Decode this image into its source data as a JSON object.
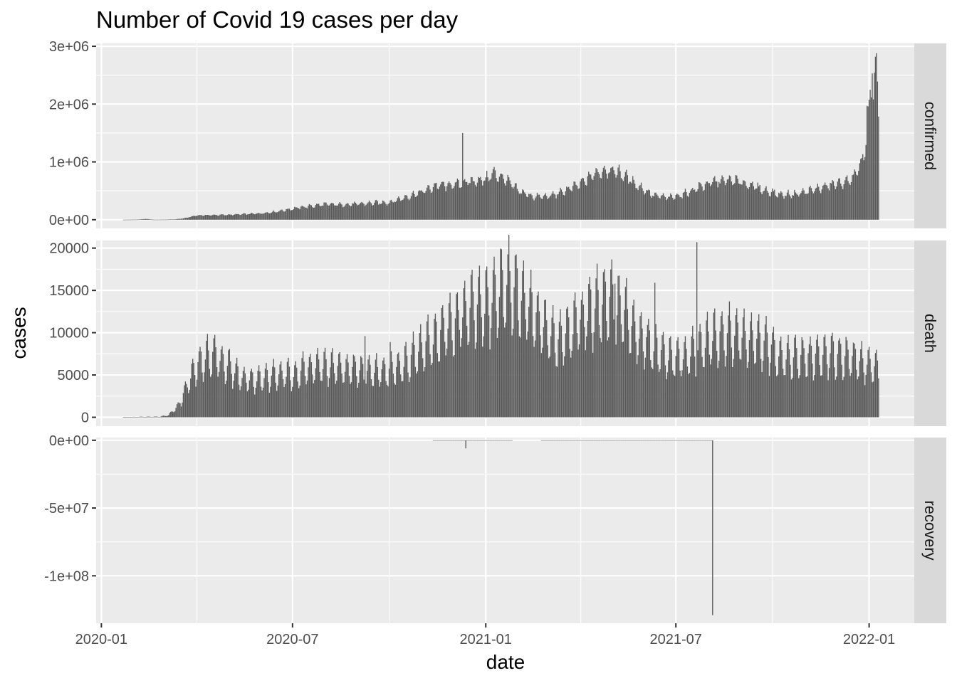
{
  "chart_data": {
    "type": "bar",
    "title": "Number of Covid 19 cases per day",
    "xlabel": "date",
    "ylabel": "cases",
    "x_domain": [
      "2019-12-27",
      "2022-02-13"
    ],
    "x_ticks": [
      "2020-01",
      "2020-07",
      "2021-01",
      "2021-07",
      "2022-01"
    ],
    "x_tick_dates": [
      "2020-01-01",
      "2020-07-01",
      "2021-01-01",
      "2021-07-01",
      "2022-01-01"
    ],
    "grid": true,
    "bar_color": "#595959",
    "panel_background": "#ebebeb",
    "strip_background": "#d9d9d9",
    "grid_color": "#ffffff",
    "panels": [
      {
        "name": "confirmed",
        "ylim": [
          -150000,
          3050000
        ],
        "y_ticks": [
          0,
          1000000,
          2000000,
          3000000
        ],
        "y_tick_labels": [
          "0e+00",
          "1e+06",
          "2e+06",
          "3e+06"
        ],
        "start_date": "2020-01-22",
        "weekly_amplitude": 0.12,
        "anchors": [
          [
            "2020-01-22",
            0
          ],
          [
            "2020-02-05",
            3000
          ],
          [
            "2020-02-12",
            15000
          ],
          [
            "2020-02-20",
            1000
          ],
          [
            "2020-03-01",
            2000
          ],
          [
            "2020-03-10",
            5000
          ],
          [
            "2020-03-20",
            25000
          ],
          [
            "2020-04-01",
            75000
          ],
          [
            "2020-04-15",
            80000
          ],
          [
            "2020-05-01",
            85000
          ],
          [
            "2020-05-15",
            95000
          ],
          [
            "2020-06-01",
            110000
          ],
          [
            "2020-06-15",
            140000
          ],
          [
            "2020-07-01",
            190000
          ],
          [
            "2020-07-15",
            230000
          ],
          [
            "2020-08-01",
            265000
          ],
          [
            "2020-08-15",
            260000
          ],
          [
            "2020-09-01",
            270000
          ],
          [
            "2020-09-15",
            290000
          ],
          [
            "2020-10-01",
            300000
          ],
          [
            "2020-10-15",
            380000
          ],
          [
            "2020-11-01",
            480000
          ],
          [
            "2020-11-15",
            590000
          ],
          [
            "2020-12-01",
            600000
          ],
          [
            "2020-12-15",
            650000
          ],
          [
            "2021-01-01",
            700000
          ],
          [
            "2021-01-08",
            800000
          ],
          [
            "2021-01-20",
            700000
          ],
          [
            "2021-02-01",
            500000
          ],
          [
            "2021-02-15",
            400000
          ],
          [
            "2021-03-01",
            400000
          ],
          [
            "2021-03-15",
            480000
          ],
          [
            "2021-04-01",
            620000
          ],
          [
            "2021-04-15",
            800000
          ],
          [
            "2021-04-28",
            870000
          ],
          [
            "2021-05-10",
            800000
          ],
          [
            "2021-05-25",
            600000
          ],
          [
            "2021-06-10",
            420000
          ],
          [
            "2021-06-25",
            380000
          ],
          [
            "2021-07-10",
            450000
          ],
          [
            "2021-07-25",
            580000
          ],
          [
            "2021-08-10",
            670000
          ],
          [
            "2021-08-25",
            680000
          ],
          [
            "2021-09-10",
            600000
          ],
          [
            "2021-09-25",
            500000
          ],
          [
            "2021-10-10",
            430000
          ],
          [
            "2021-10-25",
            450000
          ],
          [
            "2021-11-10",
            520000
          ],
          [
            "2021-11-25",
            600000
          ],
          [
            "2021-12-10",
            650000
          ],
          [
            "2021-12-20",
            780000
          ],
          [
            "2021-12-27",
            1100000
          ],
          [
            "2021-12-31",
            1700000
          ],
          [
            "2022-01-03",
            2200000
          ],
          [
            "2022-01-07",
            2550000
          ],
          [
            "2022-01-10",
            2000000
          ]
        ],
        "spikes": [
          [
            "2020-12-10",
            1500000
          ],
          [
            "2022-01-08",
            2880000
          ],
          [
            "2022-01-04",
            2530000
          ],
          [
            "2021-12-30",
            1970000
          ]
        ]
      },
      {
        "name": "death",
        "ylim": [
          -1050,
          20900
        ],
        "y_ticks": [
          0,
          5000,
          10000,
          15000,
          20000
        ],
        "y_tick_labels": [
          "0",
          "5000",
          "10000",
          "15000",
          "20000"
        ],
        "start_date": "2020-01-22",
        "weekly_amplitude": 0.35,
        "anchors": [
          [
            "2020-01-22",
            20
          ],
          [
            "2020-02-10",
            60
          ],
          [
            "2020-02-25",
            70
          ],
          [
            "2020-03-05",
            250
          ],
          [
            "2020-03-15",
            1500
          ],
          [
            "2020-03-25",
            4500
          ],
          [
            "2020-04-01",
            6000
          ],
          [
            "2020-04-15",
            7500
          ],
          [
            "2020-05-01",
            6000
          ],
          [
            "2020-05-15",
            4500
          ],
          [
            "2020-06-01",
            4500
          ],
          [
            "2020-06-15",
            5000
          ],
          [
            "2020-07-01",
            5000
          ],
          [
            "2020-07-15",
            5800
          ],
          [
            "2020-08-01",
            6000
          ],
          [
            "2020-08-15",
            5800
          ],
          [
            "2020-09-01",
            5500
          ],
          [
            "2020-09-15",
            5400
          ],
          [
            "2020-10-01",
            5500
          ],
          [
            "2020-10-15",
            6300
          ],
          [
            "2020-11-01",
            8000
          ],
          [
            "2020-11-15",
            9500
          ],
          [
            "2020-12-01",
            11000
          ],
          [
            "2020-12-15",
            12500
          ],
          [
            "2021-01-01",
            13000
          ],
          [
            "2021-01-15",
            15000
          ],
          [
            "2021-01-25",
            15500
          ],
          [
            "2021-02-10",
            13000
          ],
          [
            "2021-02-25",
            10500
          ],
          [
            "2021-03-10",
            9000
          ],
          [
            "2021-03-25",
            10500
          ],
          [
            "2021-04-10",
            12500
          ],
          [
            "2021-04-28",
            13500
          ],
          [
            "2021-05-10",
            12500
          ],
          [
            "2021-05-25",
            10000
          ],
          [
            "2021-06-10",
            8000
          ],
          [
            "2021-06-25",
            7000
          ],
          [
            "2021-07-10",
            7000
          ],
          [
            "2021-07-25",
            8500
          ],
          [
            "2021-08-10",
            9500
          ],
          [
            "2021-08-25",
            9800
          ],
          [
            "2021-09-10",
            9000
          ],
          [
            "2021-09-25",
            8500
          ],
          [
            "2021-10-10",
            7200
          ],
          [
            "2021-10-25",
            7000
          ],
          [
            "2021-11-10",
            7200
          ],
          [
            "2021-11-25",
            7400
          ],
          [
            "2021-12-10",
            7200
          ],
          [
            "2021-12-25",
            6500
          ],
          [
            "2022-01-05",
            6000
          ],
          [
            "2022-01-10",
            5500
          ]
        ],
        "spikes": [
          [
            "2021-07-21",
            20700
          ],
          [
            "2020-09-08",
            9600
          ],
          [
            "2020-10-02",
            8900
          ],
          [
            "2021-06-11",
            15900
          ],
          [
            "2021-05-04",
            15800
          ]
        ]
      },
      {
        "name": "recovery",
        "ylim": [
          -135000000,
          2000000
        ],
        "y_ticks": [
          0,
          -50000000,
          -100000000
        ],
        "y_tick_labels": [
          "0e+00",
          "-5e+07",
          "-1e+08"
        ],
        "start_date": "2020-11-12",
        "end_date": "2021-08-04",
        "weekly_amplitude": 0,
        "anchors": [
          [
            "2020-11-12",
            -300000
          ],
          [
            "2021-08-04",
            -300000
          ]
        ],
        "gaps": [
          [
            "2021-01-27",
            "2021-02-22"
          ]
        ],
        "spikes": [
          [
            "2020-12-13",
            -6000000
          ],
          [
            "2021-08-05",
            -129000000
          ]
        ]
      }
    ]
  }
}
